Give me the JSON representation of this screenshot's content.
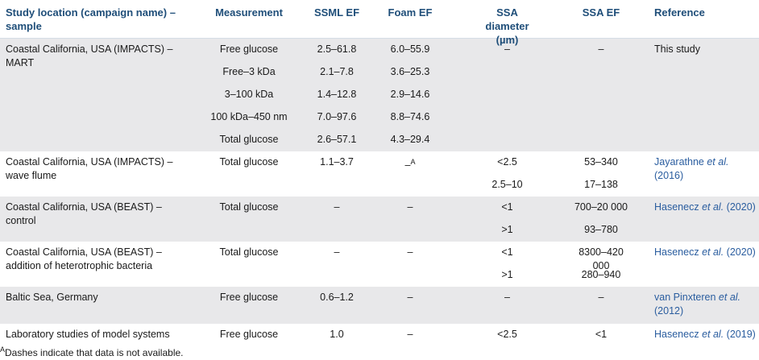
{
  "headers": {
    "location": "Study location (campaign name) – sample",
    "measurement": "Measurement",
    "ssml": "SSML EF",
    "foam": "Foam EF",
    "ssa_diam": "SSA diameter (µm)",
    "ssa_ef": "SSA EF",
    "reference": "Reference"
  },
  "rows": [
    {
      "location": "Coastal California, USA (IMPACTS) – MART",
      "reference": "This study",
      "sub": [
        {
          "measurement": "Free glucose",
          "ssml": "2.5–61.8",
          "foam": "6.0–55.9",
          "ssa_diam": "–",
          "ssa_ef": "–"
        },
        {
          "measurement": "Free–3 kDa",
          "ssml": "2.1–7.8",
          "foam": "3.6–25.3",
          "ssa_diam": "",
          "ssa_ef": ""
        },
        {
          "measurement": "3–100 kDa",
          "ssml": "1.4–12.8",
          "foam": "2.9–14.6",
          "ssa_diam": "",
          "ssa_ef": ""
        },
        {
          "measurement": "100 kDa–450 nm",
          "ssml": "7.0–97.6",
          "foam": "8.8–74.6",
          "ssa_diam": "",
          "ssa_ef": ""
        },
        {
          "measurement": "Total glucose",
          "ssml": "2.6–57.1",
          "foam": "4.3–29.4",
          "ssa_diam": "",
          "ssa_ef": ""
        }
      ]
    },
    {
      "location": "Coastal California, USA (IMPACTS) – wave flume",
      "ref_author": "Jayarathne",
      "ref_etal": "et al.",
      "ref_year": "(2016)",
      "sub": [
        {
          "measurement": "Total glucose",
          "ssml": "1.1–3.7",
          "foam": "–",
          "foam_sup": "A",
          "ssa_diam": "<2.5",
          "ssa_ef": "53–340"
        },
        {
          "measurement": "",
          "ssml": "",
          "foam": "",
          "ssa_diam": "2.5–10",
          "ssa_ef": "17–138"
        }
      ]
    },
    {
      "location": "Coastal California, USA (BEAST) – control",
      "ref_author": "Hasenecz",
      "ref_etal": "et al.",
      "ref_year": "(2020)",
      "sub": [
        {
          "measurement": "Total glucose",
          "ssml": "–",
          "foam": "–",
          "ssa_diam": "<1",
          "ssa_ef": "700–20 000"
        },
        {
          "measurement": "",
          "ssml": "",
          "foam": "",
          "ssa_diam": ">1",
          "ssa_ef": "93–780"
        }
      ]
    },
    {
      "location": "Coastal California, USA (BEAST) – addition of heterotrophic bacteria",
      "ref_author": "Hasenecz",
      "ref_etal": "et al.",
      "ref_year": "(2020)",
      "sub": [
        {
          "measurement": "Total glucose",
          "ssml": "–",
          "foam": "–",
          "ssa_diam": "<1",
          "ssa_ef": "8300–420 000"
        },
        {
          "measurement": "",
          "ssml": "",
          "foam": "",
          "ssa_diam": ">1",
          "ssa_ef": "280–940"
        }
      ]
    },
    {
      "location": "Baltic Sea, Germany",
      "ref_author": "van Pinxteren",
      "ref_etal": "et al.",
      "ref_year": "(2012)",
      "sub": [
        {
          "measurement": "Free glucose",
          "ssml": "0.6–1.2",
          "foam": "–",
          "ssa_diam": "–",
          "ssa_ef": "–"
        }
      ]
    },
    {
      "location": "Laboratory studies of model systems",
      "ref_author": "Hasenecz",
      "ref_etal": "et al.",
      "ref_year": "(2019)",
      "sub": [
        {
          "measurement": "Free glucose",
          "ssml": "1.0",
          "foam": "–",
          "ssa_diam": "<2.5",
          "ssa_ef": "<1"
        }
      ]
    }
  ],
  "footnote": {
    "marker": "A",
    "text": "Dashes indicate that data is not available."
  },
  "colors": {
    "header_text": "#1f4e79",
    "link": "#2a5d9f",
    "shade": "#e8e8ea"
  }
}
